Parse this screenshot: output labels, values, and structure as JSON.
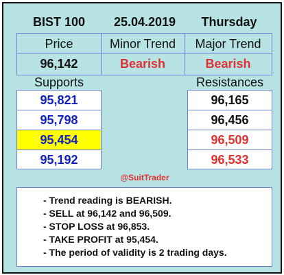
{
  "header": {
    "symbol": "BIST 100",
    "date": "25.04.2019",
    "weekday": "Thursday"
  },
  "columns": {
    "price_label": "Price",
    "minor_label": "Minor Trend",
    "major_label": "Major Trend"
  },
  "values": {
    "price": "96,142",
    "minor_trend": "Bearish",
    "major_trend": "Bearish"
  },
  "supports_label": "Supports",
  "resistances_label": "Resistances",
  "supports": [
    "95,821",
    "95,798",
    "95,454",
    "95,192"
  ],
  "resistances": [
    "96,165",
    "96,456",
    "96,509",
    "96,533"
  ],
  "handle": "@SuitTrader",
  "notes": [
    "- Trend reading is BEARISH.",
    "- SELL at 96,142 and 96,509.",
    "- STOP LOSS at 96,853.",
    "- TAKE PROFIT at 95,454.",
    "- The period of validity is 2 trading days."
  ],
  "colors": {
    "background": "#b7e3e4",
    "bearish": "#e03030",
    "support_text": "#1020c0",
    "highlight": "#ffff00",
    "border": "#6b7fd1"
  }
}
